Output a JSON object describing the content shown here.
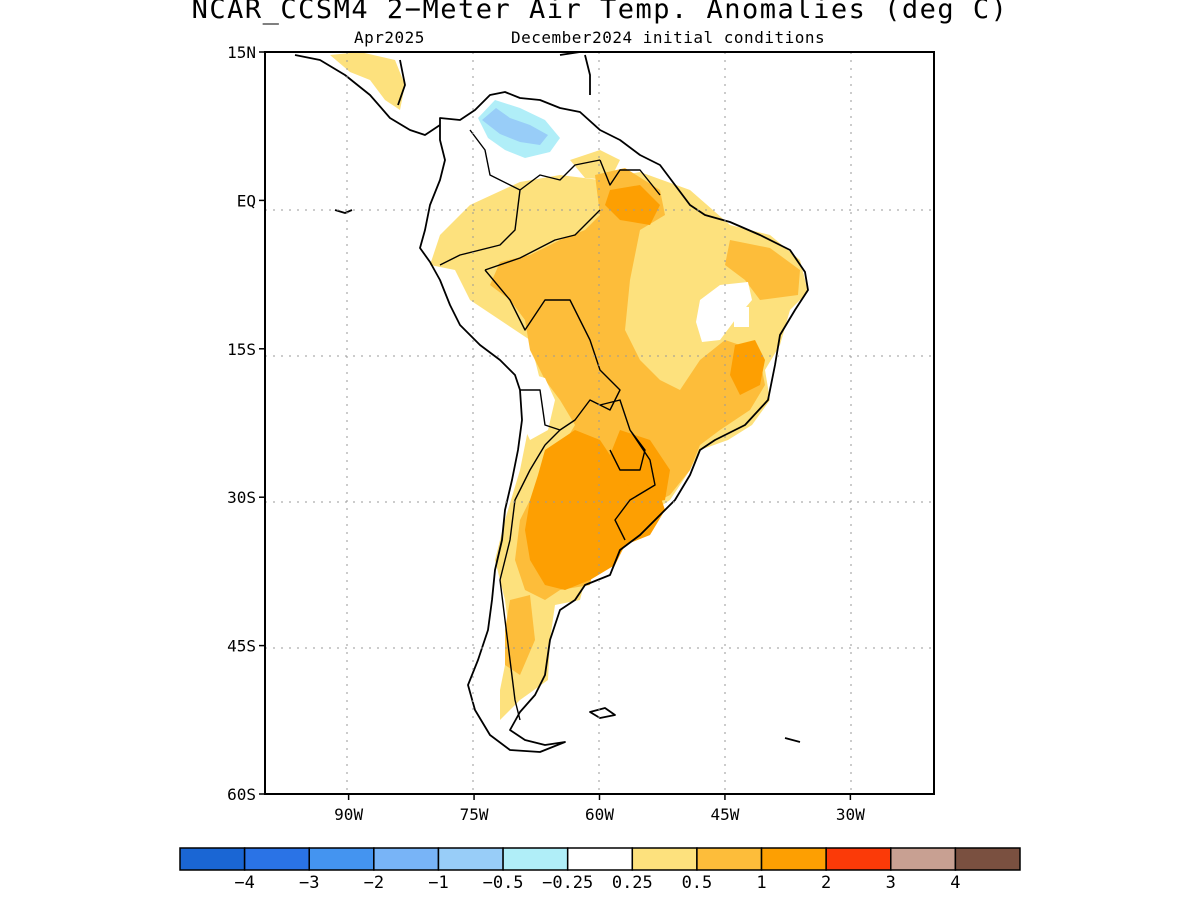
{
  "chart_data": {
    "type": "heatmap",
    "title": "NCAR_CCSM4 2−Meter Air Temp. Anomalies (deg C)",
    "subtitle_valid": "Apr2025",
    "subtitle_init": "December2024 initial conditions",
    "lon_range": [
      -100,
      -20
    ],
    "lat_range": [
      -60,
      15
    ],
    "x_ticks": [
      {
        "value": -90,
        "label": "90W"
      },
      {
        "value": -75,
        "label": "75W"
      },
      {
        "value": -60,
        "label": "60W"
      },
      {
        "value": -45,
        "label": "45W"
      },
      {
        "value": -30,
        "label": "30W"
      }
    ],
    "y_ticks": [
      {
        "value": 15,
        "label": "15N"
      },
      {
        "value": 0,
        "label": "EQ"
      },
      {
        "value": -15,
        "label": "15S"
      },
      {
        "value": -30,
        "label": "30S"
      },
      {
        "value": -45,
        "label": "45S"
      },
      {
        "value": -60,
        "label": "60S"
      }
    ],
    "grid": true,
    "colorbar": {
      "colors": [
        "#1a66d4",
        "#2a73e6",
        "#4494f0",
        "#78b4f7",
        "#98cdf8",
        "#b0eef8",
        "#ffffff",
        "#fde17d",
        "#fdbd3a",
        "#fd9f02",
        "#fb3a08",
        "#c8a092",
        "#7a5040"
      ],
      "labels": [
        "−4",
        "−3",
        "−2",
        "−1",
        "−0.5",
        "−0.25",
        "0.25",
        "0.5",
        "1",
        "2",
        "3",
        "4"
      ]
    },
    "anomaly_regions": [
      {
        "level": "-0.5 to -0.25",
        "color": "#b0eef8",
        "area": "NE Colombia / W Venezuela"
      },
      {
        "level": "-1 to -0.5",
        "color": "#98cdf8",
        "area": "Lake Maracaibo / Andes of Venezuela"
      },
      {
        "level": "0.25 to 0.5",
        "color": "#fde17d",
        "area": "Amazon, NE Brazil, Peru, Patagonia, Central America"
      },
      {
        "level": "0.5 to 1",
        "color": "#fdbd3a",
        "area": "Central Brazil, Bolivia, Paraguay, N Argentina, Guianas"
      },
      {
        "level": "1 to 2",
        "color": "#fd9f02",
        "area": "Central Argentina, Uruguay, S Brazil"
      }
    ]
  }
}
